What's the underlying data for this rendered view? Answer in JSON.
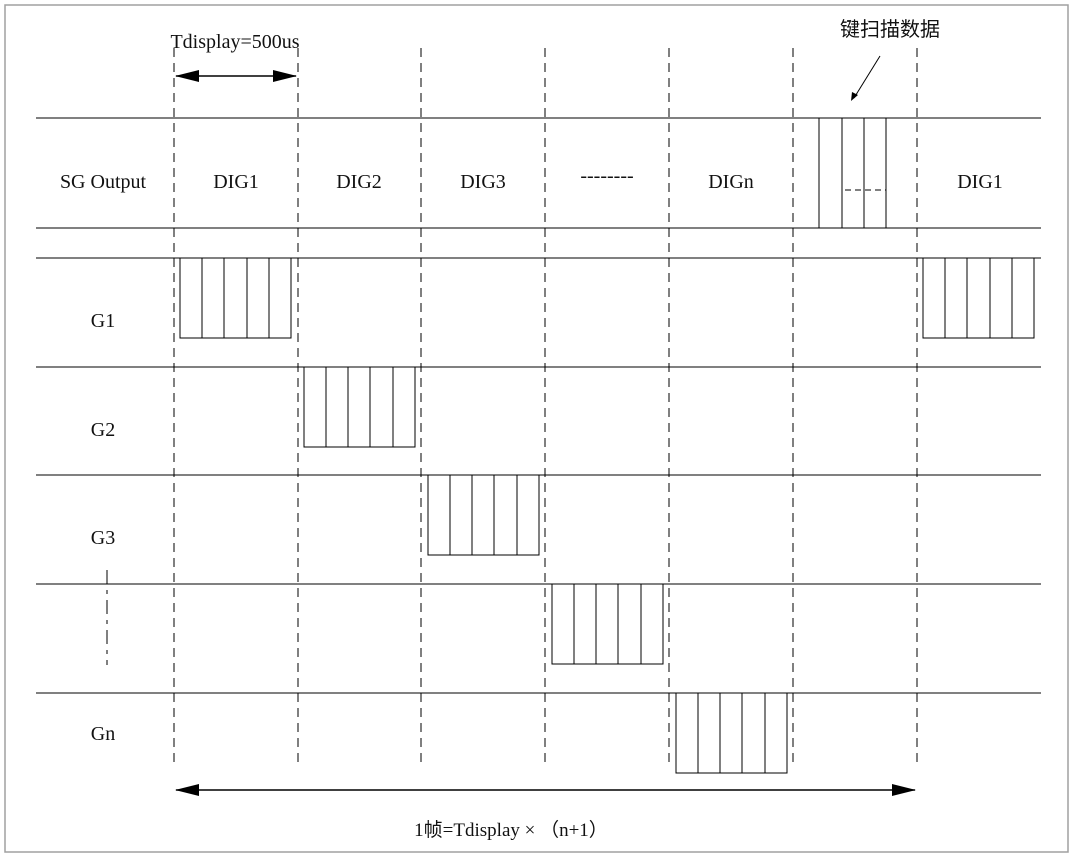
{
  "diagram": {
    "tdisplay_label": "Tdisplay=500us",
    "key_scan_label": "键扫描数据",
    "sg_output_label": "SG Output",
    "slots": [
      "DIG1",
      "DIG2",
      "DIG3",
      "--------",
      "DIGn",
      "",
      "DIG1"
    ],
    "rows": [
      "G1",
      "G2",
      "G3",
      "",
      "Gn"
    ],
    "frame_label": "1帧=Tdisplay × （n+1）"
  },
  "colors": {
    "line": "#000000",
    "frame": "#a0a0a0",
    "background": "#ffffff"
  }
}
